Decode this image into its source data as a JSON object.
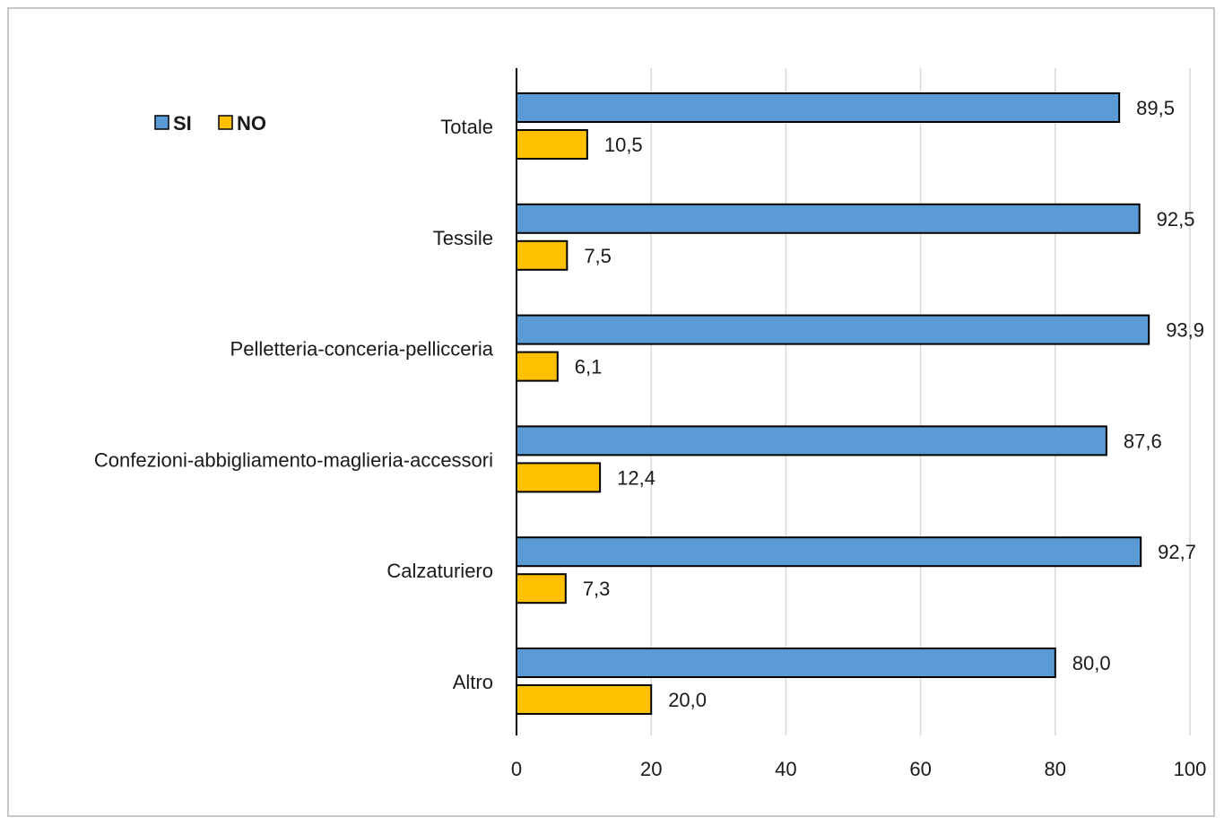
{
  "chart_data": {
    "type": "bar",
    "orientation": "horizontal",
    "categories": [
      "Totale",
      "Tessile",
      "Pelletteria-conceria-pellicceria",
      "Confezioni-abbigliamento-maglieria-accessori",
      "Calzaturiero",
      "Altro"
    ],
    "series": [
      {
        "name": "SI",
        "color": "#5b9bd5",
        "values": [
          89.5,
          92.5,
          93.9,
          87.6,
          92.7,
          80.0
        ],
        "labels": [
          "89,5",
          "92,5",
          "93,9",
          "87,6",
          "92,7",
          "80,0"
        ]
      },
      {
        "name": "NO",
        "color": "#ffc000",
        "values": [
          10.5,
          7.5,
          6.1,
          12.4,
          7.3,
          20.0
        ],
        "labels": [
          "10,5",
          "7,5",
          "6,1",
          "12,4",
          "7,3",
          "20,0"
        ]
      }
    ],
    "xlim": [
      0,
      100
    ],
    "xticks": [
      "0",
      "20",
      "40",
      "60",
      "80",
      "100"
    ],
    "grid": true,
    "legend_position": "top-left",
    "title": "",
    "xlabel": "",
    "ylabel": ""
  }
}
